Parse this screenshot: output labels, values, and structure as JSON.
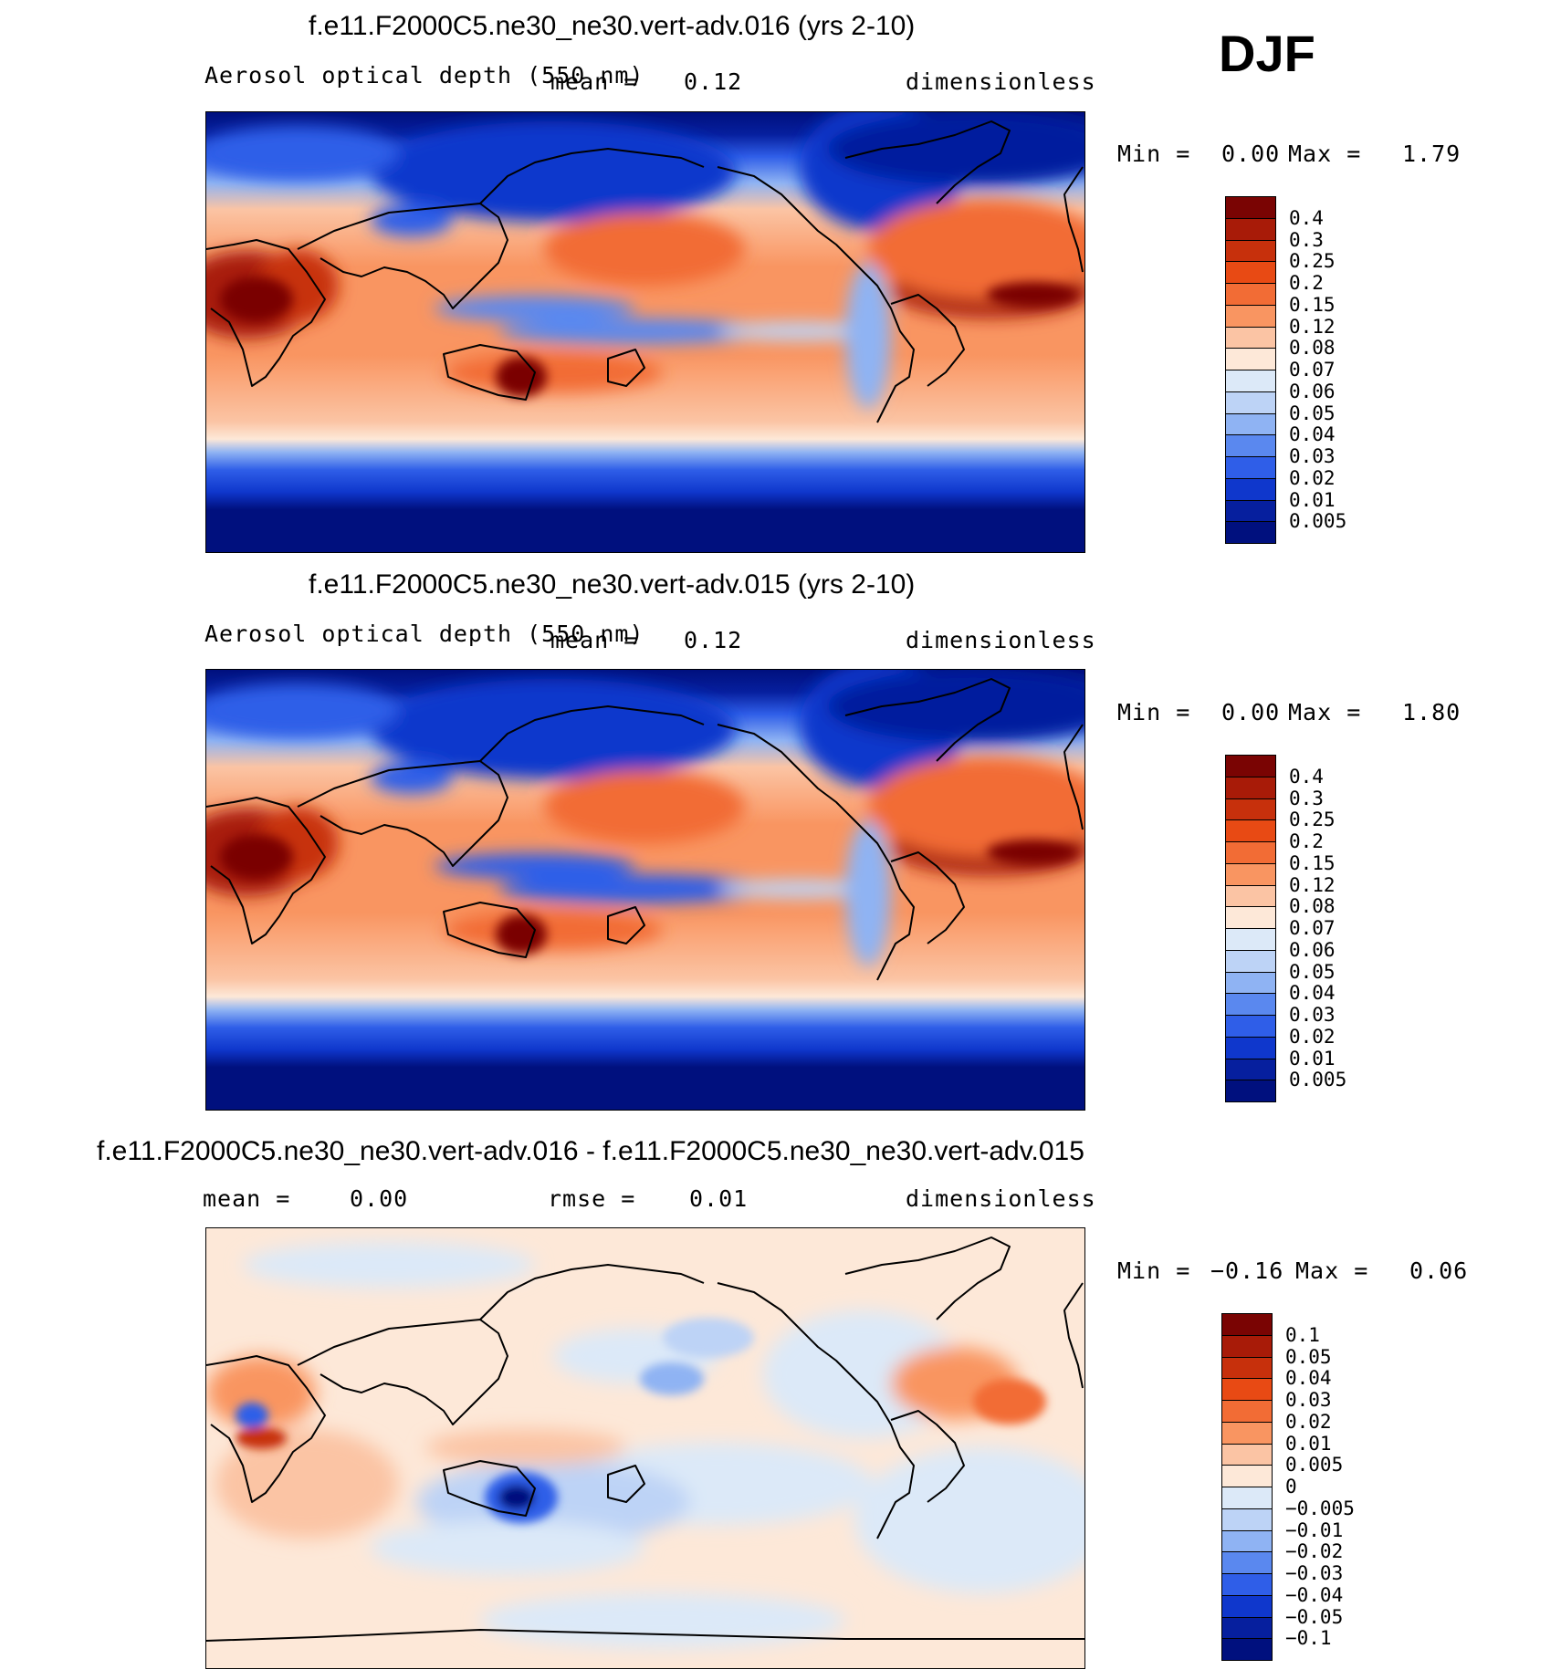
{
  "season_label": "DJF",
  "panels": [
    {
      "title": "f.e11.F2000C5.ne30_ne30.vert-adv.016 (yrs 2-10)",
      "left_label": "Aerosol optical depth (550 nm)",
      "mid_label": "mean =",
      "mid_value": "0.12",
      "right_label": "dimensionless",
      "min_label": "Min =",
      "min_value": "0.00",
      "max_label": "Max =",
      "max_value": "1.79",
      "colorbar_type": "abs"
    },
    {
      "title": "f.e11.F2000C5.ne30_ne30.vert-adv.015 (yrs 2-10)",
      "left_label": "Aerosol optical depth (550 nm)",
      "mid_label": "mean =",
      "mid_value": "0.12",
      "right_label": "dimensionless",
      "min_label": "Min =",
      "min_value": "0.00",
      "max_label": "Max =",
      "max_value": "1.80",
      "colorbar_type": "abs"
    },
    {
      "title": "f.e11.F2000C5.ne30_ne30.vert-adv.016 - f.e11.F2000C5.ne30_ne30.vert-adv.015",
      "left_label": "mean =",
      "left_value": "0.00",
      "mid_label": "rmse =",
      "mid_value": "0.01",
      "right_label": "dimensionless",
      "min_label": "Min =",
      "min_value": "−0.16",
      "max_label": "Max =",
      "max_value": "0.06",
      "colorbar_type": "diff"
    }
  ],
  "colorbars": {
    "abs": {
      "labels": [
        "0.4",
        "0.3",
        "0.25",
        "0.2",
        "0.15",
        "0.12",
        "0.08",
        "0.07",
        "0.06",
        "0.05",
        "0.04",
        "0.03",
        "0.02",
        "0.01",
        "0.005"
      ],
      "colors": [
        "#7a0403",
        "#a81b08",
        "#c7300c",
        "#e84a14",
        "#f26c35",
        "#f99561",
        "#fbc4a4",
        "#fde8d8",
        "#dce9f8",
        "#bdd3f6",
        "#8fb3f3",
        "#5a88ef",
        "#2f5ee8",
        "#0f37cc",
        "#061f9e",
        "#00107e"
      ]
    },
    "diff": {
      "labels": [
        "0.1",
        "0.05",
        "0.04",
        "0.03",
        "0.02",
        "0.01",
        "0.005",
        "0",
        "−0.005",
        "−0.01",
        "−0.02",
        "−0.03",
        "−0.04",
        "−0.05",
        "−0.1"
      ],
      "colors": [
        "#7a0403",
        "#a81b08",
        "#c7300c",
        "#e84a14",
        "#f26c35",
        "#f99561",
        "#fbc4a4",
        "#fde8d8",
        "#dce9f8",
        "#bdd3f6",
        "#8fb3f3",
        "#5a88ef",
        "#2f5ee8",
        "#0f37cc",
        "#061f9e",
        "#00107e"
      ]
    }
  }
}
